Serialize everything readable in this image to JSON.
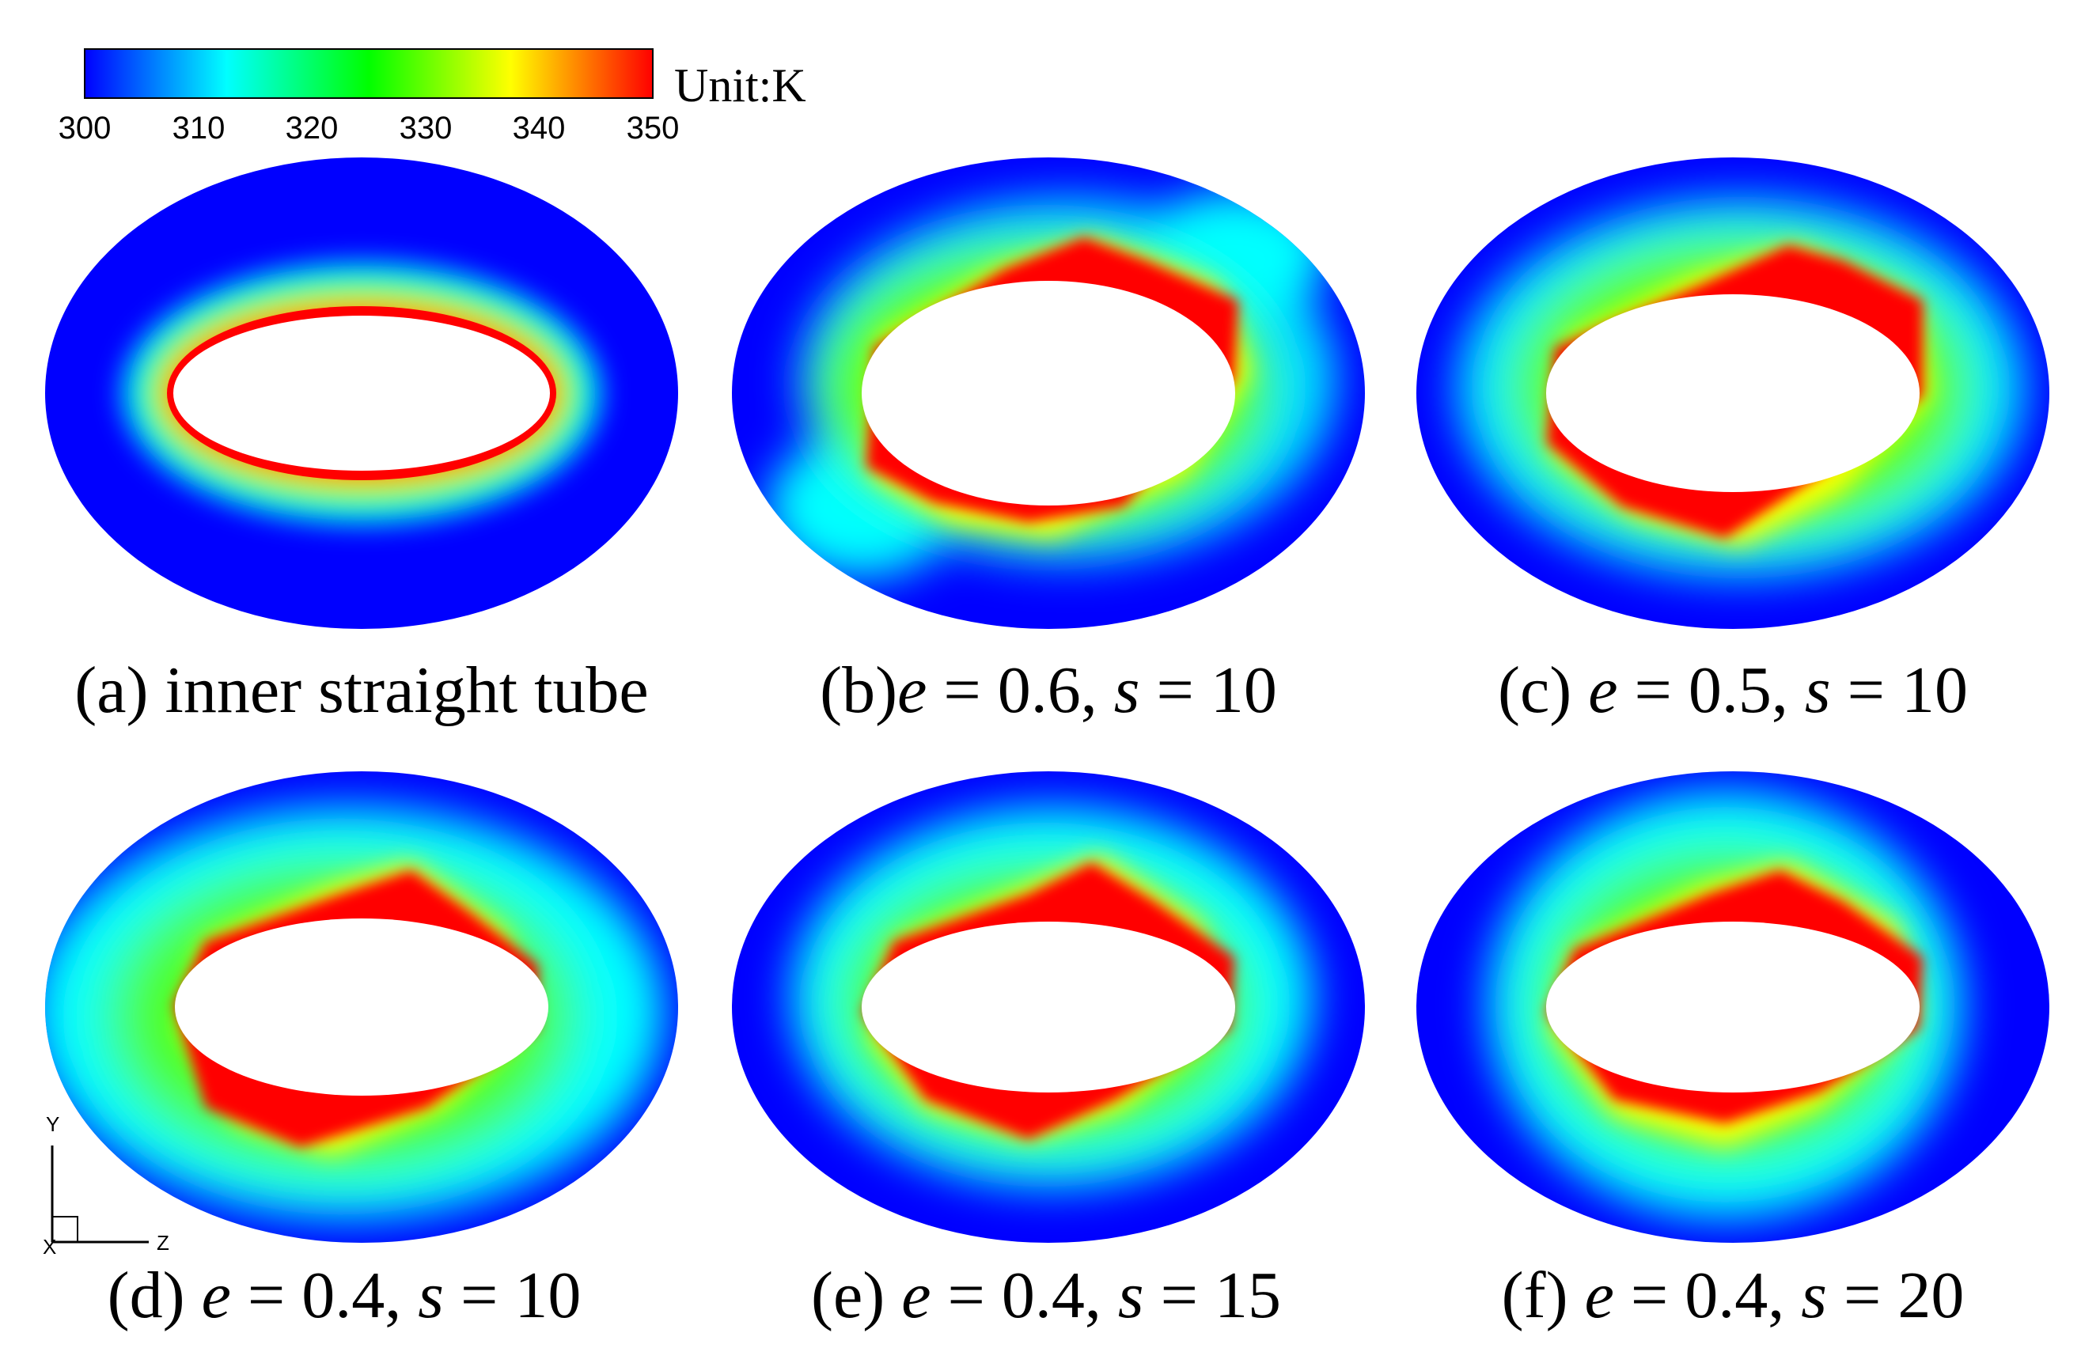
{
  "colorbar": {
    "ticks": [
      "300",
      "310",
      "320",
      "330",
      "340",
      "350"
    ],
    "unit_label": "Unit:K",
    "colors": [
      "#0000ff",
      "#00ffff",
      "#00ff00",
      "#ffff00",
      "#ff0000"
    ]
  },
  "panels": [
    {
      "id": "a",
      "caption_prefix": "(a)",
      "caption_text": "inner straight tube",
      "e": "",
      "s": ""
    },
    {
      "id": "b",
      "caption_prefix": "(b)",
      "caption_text": "",
      "e": "0.6",
      "s": "10"
    },
    {
      "id": "c",
      "caption_prefix": "(c)",
      "caption_text": "",
      "e": "0.5",
      "s": "10"
    },
    {
      "id": "d",
      "caption_prefix": "(d)",
      "caption_text": "",
      "e": "0.4",
      "s": "10"
    },
    {
      "id": "e",
      "caption_prefix": "(e)",
      "caption_text": "",
      "e": "0.4",
      "s": "15"
    },
    {
      "id": "f",
      "caption_prefix": "(f)",
      "caption_text": "",
      "e": "0.4",
      "s": "20"
    }
  ],
  "caption_symbols": {
    "e": "e",
    "s": "s",
    "eq": " = ",
    "comma": ", "
  },
  "axes": {
    "y": "Y",
    "z": "Z",
    "x": "X"
  }
}
